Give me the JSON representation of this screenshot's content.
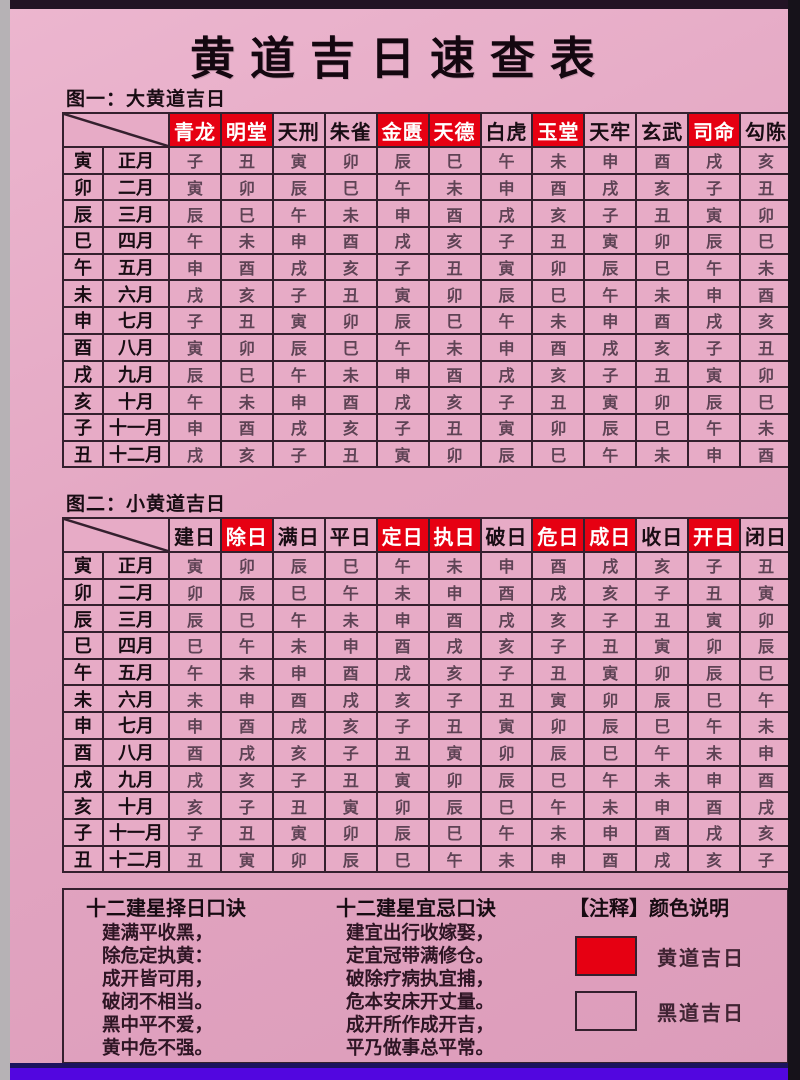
{
  "colors": {
    "highlight_red": "#e60012",
    "page_pink": "#e3a6c2",
    "bottom_bar_purple": "#5206e0"
  },
  "title": "黄道吉日速查表",
  "table1": {
    "label": "图一：大黄道吉日",
    "columns": [
      {
        "label": "青龙",
        "red": true
      },
      {
        "label": "明堂",
        "red": true
      },
      {
        "label": "天刑",
        "red": false
      },
      {
        "label": "朱雀",
        "red": false
      },
      {
        "label": "金匮",
        "red": true
      },
      {
        "label": "天德",
        "red": true
      },
      {
        "label": "白虎",
        "red": false
      },
      {
        "label": "玉堂",
        "red": true
      },
      {
        "label": "天牢",
        "red": false
      },
      {
        "label": "玄武",
        "red": false
      },
      {
        "label": "司命",
        "red": true
      },
      {
        "label": "勾陈",
        "red": false
      }
    ],
    "rows": [
      {
        "branch": "寅",
        "month": "正月",
        "cells": [
          "子",
          "丑",
          "寅",
          "卯",
          "辰",
          "巳",
          "午",
          "未",
          "申",
          "酉",
          "戌",
          "亥"
        ]
      },
      {
        "branch": "卯",
        "month": "二月",
        "cells": [
          "寅",
          "卯",
          "辰",
          "巳",
          "午",
          "未",
          "申",
          "酉",
          "戌",
          "亥",
          "子",
          "丑"
        ]
      },
      {
        "branch": "辰",
        "month": "三月",
        "cells": [
          "辰",
          "巳",
          "午",
          "未",
          "申",
          "酉",
          "戌",
          "亥",
          "子",
          "丑",
          "寅",
          "卯"
        ]
      },
      {
        "branch": "巳",
        "month": "四月",
        "cells": [
          "午",
          "未",
          "申",
          "酉",
          "戌",
          "亥",
          "子",
          "丑",
          "寅",
          "卯",
          "辰",
          "巳"
        ]
      },
      {
        "branch": "午",
        "month": "五月",
        "cells": [
          "申",
          "酉",
          "戌",
          "亥",
          "子",
          "丑",
          "寅",
          "卯",
          "辰",
          "巳",
          "午",
          "未"
        ]
      },
      {
        "branch": "未",
        "month": "六月",
        "cells": [
          "戌",
          "亥",
          "子",
          "丑",
          "寅",
          "卯",
          "辰",
          "巳",
          "午",
          "未",
          "申",
          "酉"
        ]
      },
      {
        "branch": "申",
        "month": "七月",
        "cells": [
          "子",
          "丑",
          "寅",
          "卯",
          "辰",
          "巳",
          "午",
          "未",
          "申",
          "酉",
          "戌",
          "亥"
        ]
      },
      {
        "branch": "酉",
        "month": "八月",
        "cells": [
          "寅",
          "卯",
          "辰",
          "巳",
          "午",
          "未",
          "申",
          "酉",
          "戌",
          "亥",
          "子",
          "丑"
        ]
      },
      {
        "branch": "戌",
        "month": "九月",
        "cells": [
          "辰",
          "巳",
          "午",
          "未",
          "申",
          "酉",
          "戌",
          "亥",
          "子",
          "丑",
          "寅",
          "卯"
        ]
      },
      {
        "branch": "亥",
        "month": "十月",
        "cells": [
          "午",
          "未",
          "申",
          "酉",
          "戌",
          "亥",
          "子",
          "丑",
          "寅",
          "卯",
          "辰",
          "巳"
        ]
      },
      {
        "branch": "子",
        "month": "十一月",
        "cells": [
          "申",
          "酉",
          "戌",
          "亥",
          "子",
          "丑",
          "寅",
          "卯",
          "辰",
          "巳",
          "午",
          "未"
        ]
      },
      {
        "branch": "丑",
        "month": "十二月",
        "cells": [
          "戌",
          "亥",
          "子",
          "丑",
          "寅",
          "卯",
          "辰",
          "巳",
          "午",
          "未",
          "申",
          "酉"
        ]
      }
    ]
  },
  "table2": {
    "label": "图二：小黄道吉日",
    "columns": [
      {
        "label": "建日",
        "red": false
      },
      {
        "label": "除日",
        "red": true
      },
      {
        "label": "满日",
        "red": false
      },
      {
        "label": "平日",
        "red": false
      },
      {
        "label": "定日",
        "red": true
      },
      {
        "label": "执日",
        "red": true
      },
      {
        "label": "破日",
        "red": false
      },
      {
        "label": "危日",
        "red": true
      },
      {
        "label": "成日",
        "red": true
      },
      {
        "label": "收日",
        "red": false
      },
      {
        "label": "开日",
        "red": true
      },
      {
        "label": "闭日",
        "red": false
      }
    ],
    "rows": [
      {
        "branch": "寅",
        "month": "正月",
        "cells": [
          "寅",
          "卯",
          "辰",
          "巳",
          "午",
          "未",
          "申",
          "酉",
          "戌",
          "亥",
          "子",
          "丑"
        ]
      },
      {
        "branch": "卯",
        "month": "二月",
        "cells": [
          "卯",
          "辰",
          "巳",
          "午",
          "未",
          "申",
          "酉",
          "戌",
          "亥",
          "子",
          "丑",
          "寅"
        ]
      },
      {
        "branch": "辰",
        "month": "三月",
        "cells": [
          "辰",
          "巳",
          "午",
          "未",
          "申",
          "酉",
          "戌",
          "亥",
          "子",
          "丑",
          "寅",
          "卯"
        ]
      },
      {
        "branch": "巳",
        "month": "四月",
        "cells": [
          "巳",
          "午",
          "未",
          "申",
          "酉",
          "戌",
          "亥",
          "子",
          "丑",
          "寅",
          "卯",
          "辰"
        ]
      },
      {
        "branch": "午",
        "month": "五月",
        "cells": [
          "午",
          "未",
          "申",
          "酉",
          "戌",
          "亥",
          "子",
          "丑",
          "寅",
          "卯",
          "辰",
          "巳"
        ]
      },
      {
        "branch": "未",
        "month": "六月",
        "cells": [
          "未",
          "申",
          "酉",
          "戌",
          "亥",
          "子",
          "丑",
          "寅",
          "卯",
          "辰",
          "巳",
          "午"
        ]
      },
      {
        "branch": "申",
        "month": "七月",
        "cells": [
          "申",
          "酉",
          "戌",
          "亥",
          "子",
          "丑",
          "寅",
          "卯",
          "辰",
          "巳",
          "午",
          "未"
        ]
      },
      {
        "branch": "酉",
        "month": "八月",
        "cells": [
          "酉",
          "戌",
          "亥",
          "子",
          "丑",
          "寅",
          "卯",
          "辰",
          "巳",
          "午",
          "未",
          "申"
        ]
      },
      {
        "branch": "戌",
        "month": "九月",
        "cells": [
          "戌",
          "亥",
          "子",
          "丑",
          "寅",
          "卯",
          "辰",
          "巳",
          "午",
          "未",
          "申",
          "酉"
        ]
      },
      {
        "branch": "亥",
        "month": "十月",
        "cells": [
          "亥",
          "子",
          "丑",
          "寅",
          "卯",
          "辰",
          "巳",
          "午",
          "未",
          "申",
          "酉",
          "戌"
        ]
      },
      {
        "branch": "子",
        "month": "十一月",
        "cells": [
          "子",
          "丑",
          "寅",
          "卯",
          "辰",
          "巳",
          "午",
          "未",
          "申",
          "酉",
          "戌",
          "亥"
        ]
      },
      {
        "branch": "丑",
        "month": "十二月",
        "cells": [
          "丑",
          "寅",
          "卯",
          "辰",
          "巳",
          "午",
          "未",
          "申",
          "酉",
          "戌",
          "亥",
          "子"
        ]
      }
    ]
  },
  "footer": {
    "col1": {
      "title": "十二建星择日口诀",
      "lines": [
        "建满平收黑，",
        "除危定执黄：",
        "成开皆可用，",
        "破闭不相当。",
        "黑中平不爱，",
        "黄中危不强。"
      ]
    },
    "col2": {
      "title": "十二建星宜忌口诀",
      "lines": [
        "建宜出行收嫁娶，",
        "定宜冠带满修仓。",
        "破除疗病执宜捕，",
        "危本安床开丈量。",
        "成开所作成开吉，",
        "平乃做事总平常。"
      ]
    },
    "col3": {
      "title": "【注释】颜色说明",
      "legend": [
        {
          "swatch": "red",
          "label": "黄道吉日"
        },
        {
          "swatch": "white",
          "label": "黑道吉日"
        }
      ]
    }
  }
}
